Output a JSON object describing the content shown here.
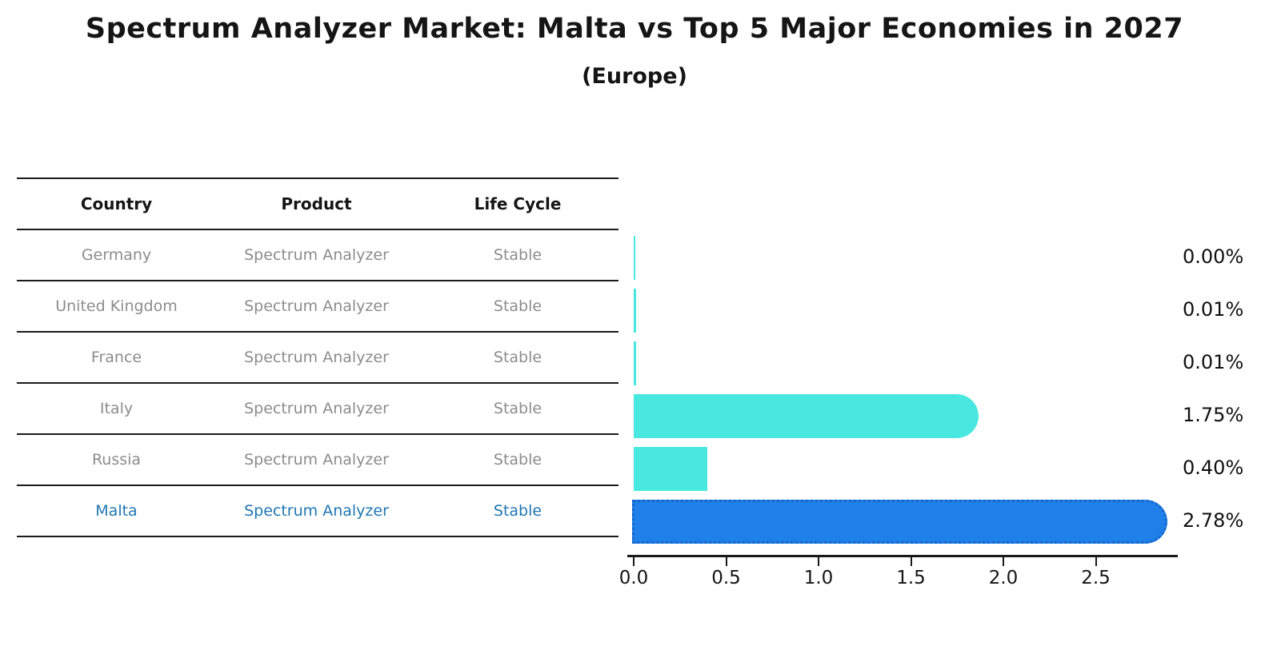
{
  "title": "Spectrum Analyzer Market: Malta vs Top 5 Major Economies in 2027",
  "subtitle": "(Europe)",
  "table": {
    "headers": [
      "Country",
      "Product",
      "Life Cycle"
    ],
    "rows": [
      {
        "country": "Germany",
        "product": "Spectrum Analyzer",
        "life_cycle": "Stable",
        "highlight": false
      },
      {
        "country": "United Kingdom",
        "product": "Spectrum Analyzer",
        "life_cycle": "Stable",
        "highlight": false
      },
      {
        "country": "France",
        "product": "Spectrum Analyzer",
        "life_cycle": "Stable",
        "highlight": false
      },
      {
        "country": "Italy",
        "product": "Spectrum Analyzer",
        "life_cycle": "Stable",
        "highlight": false
      },
      {
        "country": "Russia",
        "product": "Spectrum Analyzer",
        "life_cycle": "Stable",
        "highlight": false
      },
      {
        "country": "Malta",
        "product": "Spectrum Analyzer",
        "life_cycle": "Stable",
        "highlight": true
      }
    ]
  },
  "chart_data": {
    "type": "bar",
    "orientation": "horizontal",
    "title": "Spectrum Analyzer Market: Malta vs Top 5 Major Economies in 2027 (Europe)",
    "categories": [
      "Germany",
      "United Kingdom",
      "France",
      "Italy",
      "Russia",
      "Malta"
    ],
    "values": [
      0.0,
      0.01,
      0.01,
      1.75,
      0.4,
      2.78
    ],
    "value_labels": [
      "0.00%",
      "0.01%",
      "0.01%",
      "1.75%",
      "0.40%",
      "2.78%"
    ],
    "highlight_category": "Malta",
    "highlight_index": 5,
    "x_ticks": [
      0.0,
      0.5,
      1.0,
      1.5,
      2.0,
      2.5
    ],
    "x_tick_labels": [
      "0.0",
      "0.5",
      "1.0",
      "1.5",
      "2.0",
      "2.5"
    ],
    "xlim": [
      0,
      2.94
    ],
    "grid": false,
    "legend": false,
    "bar_color": "#48e8e0",
    "highlight_bar_color": "#1e80e8",
    "highlight_bar_border_color": "#1565cc",
    "highlight_text_color": "#1f77b4",
    "unit": "%"
  }
}
